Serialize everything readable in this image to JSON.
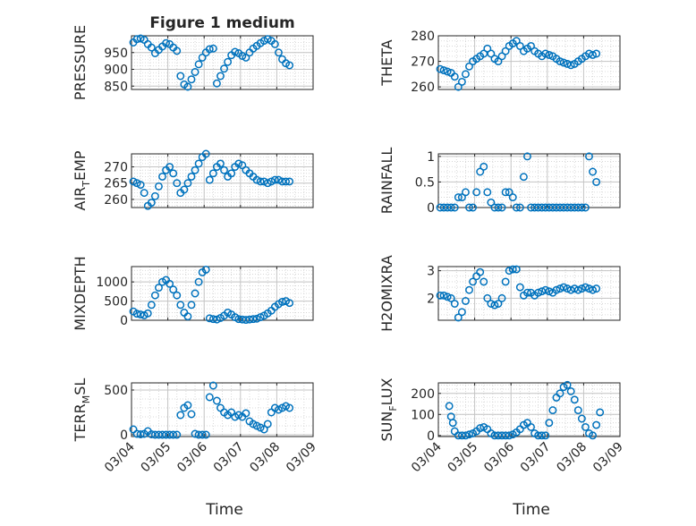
{
  "figure": {
    "marker_color": "#0072BD",
    "x_axis_label": "Time",
    "x_tick_labels": [
      "03/04",
      "03/05",
      "03/06",
      "03/07",
      "03/08",
      "03/09"
    ]
  },
  "chart_data": [
    {
      "type": "scatter",
      "title": "Figure 1 medium",
      "ylabel": "PRESSURE",
      "ylim": [
        840,
        1000
      ],
      "yticks": [
        850,
        900,
        950
      ],
      "xlim": [
        0,
        5
      ],
      "grid": true,
      "x": [
        0.05,
        0.15,
        0.25,
        0.35,
        0.45,
        0.55,
        0.65,
        0.75,
        0.85,
        0.95,
        1.05,
        1.15,
        1.25,
        1.35,
        1.45,
        1.55,
        1.65,
        1.75,
        1.85,
        1.95,
        2.05,
        2.15,
        2.25,
        2.35,
        2.45,
        2.55,
        2.65,
        2.75,
        2.85,
        2.95,
        3.05,
        3.15,
        3.25,
        3.35,
        3.45,
        3.55,
        3.65,
        3.75,
        3.85,
        3.95,
        4.05,
        4.15,
        4.25,
        4.35
      ],
      "y": [
        980,
        990,
        992,
        988,
        975,
        965,
        948,
        958,
        968,
        978,
        975,
        965,
        955,
        880,
        855,
        848,
        870,
        892,
        915,
        935,
        950,
        960,
        962,
        858,
        880,
        902,
        922,
        942,
        952,
        948,
        940,
        935,
        950,
        962,
        970,
        978,
        985,
        990,
        985,
        975,
        950,
        930,
        918,
        912
      ]
    },
    {
      "type": "scatter",
      "title": "",
      "ylabel": "THETA",
      "ylim": [
        259,
        280
      ],
      "yticks": [
        260,
        270,
        280
      ],
      "xlim": [
        0,
        5
      ],
      "grid": true,
      "x": [
        0.05,
        0.15,
        0.25,
        0.35,
        0.45,
        0.55,
        0.65,
        0.75,
        0.85,
        0.95,
        1.05,
        1.15,
        1.25,
        1.35,
        1.45,
        1.55,
        1.65,
        1.75,
        1.85,
        1.95,
        2.05,
        2.15,
        2.25,
        2.35,
        2.45,
        2.55,
        2.65,
        2.75,
        2.85,
        2.95,
        3.05,
        3.15,
        3.25,
        3.35,
        3.45,
        3.55,
        3.65,
        3.75,
        3.85,
        3.95,
        4.05,
        4.15,
        4.25,
        4.35
      ],
      "y": [
        267,
        266.5,
        266,
        265.5,
        264,
        260,
        262,
        265,
        268,
        270,
        271,
        272,
        273,
        275,
        273,
        271,
        270,
        272,
        274,
        276,
        277,
        278,
        276,
        274,
        275,
        276,
        274,
        273,
        272,
        273,
        272.5,
        272,
        271,
        270,
        269.5,
        269,
        268.5,
        269,
        270,
        271,
        272,
        273,
        272.5,
        273
      ]
    },
    {
      "type": "scatter",
      "title": "",
      "ylabel": "AIR_TEMP",
      "ylim": [
        257.5,
        274
      ],
      "yticks": [
        260,
        265,
        270
      ],
      "xlim": [
        0,
        5
      ],
      "grid": true,
      "x": [
        0.05,
        0.15,
        0.25,
        0.35,
        0.45,
        0.55,
        0.65,
        0.75,
        0.85,
        0.95,
        1.05,
        1.15,
        1.25,
        1.35,
        1.45,
        1.55,
        1.65,
        1.75,
        1.85,
        1.95,
        2.05,
        2.15,
        2.25,
        2.35,
        2.45,
        2.55,
        2.65,
        2.75,
        2.85,
        2.95,
        3.05,
        3.15,
        3.25,
        3.35,
        3.45,
        3.55,
        3.65,
        3.75,
        3.85,
        3.95,
        4.05,
        4.15,
        4.25,
        4.35
      ],
      "y": [
        265.5,
        265,
        264.5,
        262,
        258,
        259,
        261,
        264,
        267,
        269,
        270,
        268,
        265,
        262,
        263,
        265,
        267,
        269,
        271,
        273,
        274,
        266,
        268,
        270,
        271,
        269,
        267,
        268,
        270,
        271,
        270.5,
        269,
        268,
        267,
        266,
        265.5,
        265.5,
        265,
        265.5,
        266,
        266,
        265.5,
        265.5,
        265.5
      ]
    },
    {
      "type": "scatter",
      "title": "",
      "ylabel": "RAINFALL",
      "ylim": [
        0,
        1.05
      ],
      "yticks": [
        0,
        0.5,
        1
      ],
      "xlim": [
        0,
        5
      ],
      "grid": true,
      "x": [
        0.05,
        0.15,
        0.25,
        0.35,
        0.45,
        0.55,
        0.65,
        0.75,
        0.85,
        0.95,
        1.05,
        1.15,
        1.25,
        1.35,
        1.45,
        1.55,
        1.65,
        1.75,
        1.85,
        1.95,
        2.05,
        2.15,
        2.25,
        2.35,
        2.45,
        2.55,
        2.65,
        2.75,
        2.85,
        2.95,
        3.05,
        3.15,
        3.25,
        3.35,
        3.45,
        3.55,
        3.65,
        3.75,
        3.85,
        3.95,
        4.05,
        4.15,
        4.25,
        4.35
      ],
      "y": [
        0,
        0,
        0,
        0,
        0,
        0.2,
        0.2,
        0.3,
        0,
        0,
        0.3,
        0.7,
        0.8,
        0.3,
        0.1,
        0,
        0,
        0,
        0.3,
        0.3,
        0.2,
        0,
        0,
        0.6,
        1,
        0,
        0,
        0,
        0,
        0,
        0,
        0,
        0,
        0,
        0,
        0,
        0,
        0,
        0,
        0,
        0,
        1,
        0.7,
        0.5
      ]
    },
    {
      "type": "scatter",
      "title": "",
      "ylabel": "MIXDEPTH",
      "ylim": [
        0,
        1400
      ],
      "yticks": [
        0,
        500,
        1000
      ],
      "xlim": [
        0,
        5
      ],
      "grid": true,
      "x": [
        0.05,
        0.15,
        0.25,
        0.35,
        0.45,
        0.55,
        0.65,
        0.75,
        0.85,
        0.95,
        1.05,
        1.15,
        1.25,
        1.35,
        1.45,
        1.55,
        1.65,
        1.75,
        1.85,
        1.95,
        2.05,
        2.15,
        2.25,
        2.35,
        2.45,
        2.55,
        2.65,
        2.75,
        2.85,
        2.95,
        3.05,
        3.15,
        3.25,
        3.35,
        3.45,
        3.55,
        3.65,
        3.75,
        3.85,
        3.95,
        4.05,
        4.15,
        4.25,
        4.35
      ],
      "y": [
        230,
        170,
        150,
        130,
        180,
        400,
        650,
        850,
        1000,
        1050,
        950,
        800,
        650,
        400,
        200,
        100,
        400,
        700,
        1000,
        1250,
        1320,
        50,
        30,
        20,
        60,
        120,
        200,
        150,
        80,
        30,
        20,
        10,
        20,
        30,
        40,
        80,
        120,
        180,
        250,
        350,
        420,
        480,
        500,
        450
      ]
    },
    {
      "type": "scatter",
      "title": "",
      "ylabel": "H2OMIXRA",
      "ylim": [
        1.2,
        3.15
      ],
      "yticks": [
        2,
        3
      ],
      "xlim": [
        0,
        5
      ],
      "grid": true,
      "x": [
        0.05,
        0.15,
        0.25,
        0.35,
        0.45,
        0.55,
        0.65,
        0.75,
        0.85,
        0.95,
        1.05,
        1.15,
        1.25,
        1.35,
        1.45,
        1.55,
        1.65,
        1.75,
        1.85,
        1.95,
        2.05,
        2.15,
        2.25,
        2.35,
        2.45,
        2.55,
        2.65,
        2.75,
        2.85,
        2.95,
        3.05,
        3.15,
        3.25,
        3.35,
        3.45,
        3.55,
        3.65,
        3.75,
        3.85,
        3.95,
        4.05,
        4.15,
        4.25,
        4.35
      ],
      "y": [
        2.1,
        2.1,
        2.05,
        2.0,
        1.8,
        1.3,
        1.5,
        1.9,
        2.3,
        2.6,
        2.8,
        2.95,
        2.6,
        2.0,
        1.8,
        1.75,
        1.8,
        2.0,
        2.6,
        3.0,
        3.05,
        3.05,
        2.4,
        2.1,
        2.2,
        2.2,
        2.1,
        2.2,
        2.25,
        2.3,
        2.25,
        2.2,
        2.3,
        2.35,
        2.4,
        2.35,
        2.3,
        2.35,
        2.3,
        2.35,
        2.4,
        2.35,
        2.3,
        2.35
      ]
    },
    {
      "type": "scatter",
      "title": "",
      "ylabel": "TERR_MSL",
      "ylim": [
        -20,
        580
      ],
      "yticks": [
        0,
        500
      ],
      "xlim": [
        0,
        5
      ],
      "grid": true,
      "x": [
        0.05,
        0.15,
        0.25,
        0.35,
        0.45,
        0.55,
        0.65,
        0.75,
        0.85,
        0.95,
        1.05,
        1.15,
        1.25,
        1.35,
        1.45,
        1.55,
        1.65,
        1.75,
        1.85,
        1.95,
        2.05,
        2.15,
        2.25,
        2.35,
        2.45,
        2.55,
        2.65,
        2.75,
        2.85,
        2.95,
        3.05,
        3.15,
        3.25,
        3.35,
        3.45,
        3.55,
        3.65,
        3.75,
        3.85,
        3.95,
        4.05,
        4.15,
        4.25,
        4.35
      ],
      "y": [
        60,
        10,
        5,
        10,
        40,
        5,
        0,
        0,
        0,
        0,
        0,
        0,
        0,
        220,
        300,
        330,
        230,
        10,
        0,
        0,
        0,
        420,
        550,
        380,
        300,
        250,
        220,
        250,
        200,
        220,
        200,
        240,
        150,
        120,
        100,
        80,
        60,
        120,
        250,
        300,
        280,
        300,
        320,
        300
      ]
    },
    {
      "type": "scatter",
      "title": "",
      "ylabel": "SUN_FLUX",
      "ylim": [
        -5,
        250
      ],
      "yticks": [
        0,
        100,
        200
      ],
      "xlim": [
        0,
        5
      ],
      "grid": true,
      "x": [
        0.3,
        0.35,
        0.4,
        0.45,
        0.55,
        0.65,
        0.75,
        0.85,
        0.95,
        1.05,
        1.15,
        1.25,
        1.35,
        1.45,
        1.55,
        1.65,
        1.75,
        1.85,
        1.95,
        2.05,
        2.15,
        2.25,
        2.35,
        2.45,
        2.55,
        2.65,
        2.75,
        2.85,
        2.95,
        3.05,
        3.15,
        3.25,
        3.35,
        3.45,
        3.55,
        3.65,
        3.75,
        3.85,
        3.95,
        4.05,
        4.15,
        4.25,
        4.35,
        4.45
      ],
      "y": [
        140,
        90,
        60,
        20,
        0,
        0,
        0,
        5,
        10,
        20,
        35,
        40,
        30,
        10,
        0,
        0,
        0,
        0,
        0,
        5,
        15,
        30,
        50,
        60,
        40,
        10,
        0,
        0,
        0,
        60,
        120,
        180,
        200,
        230,
        240,
        210,
        170,
        120,
        80,
        40,
        10,
        0,
        50,
        110
      ]
    }
  ]
}
